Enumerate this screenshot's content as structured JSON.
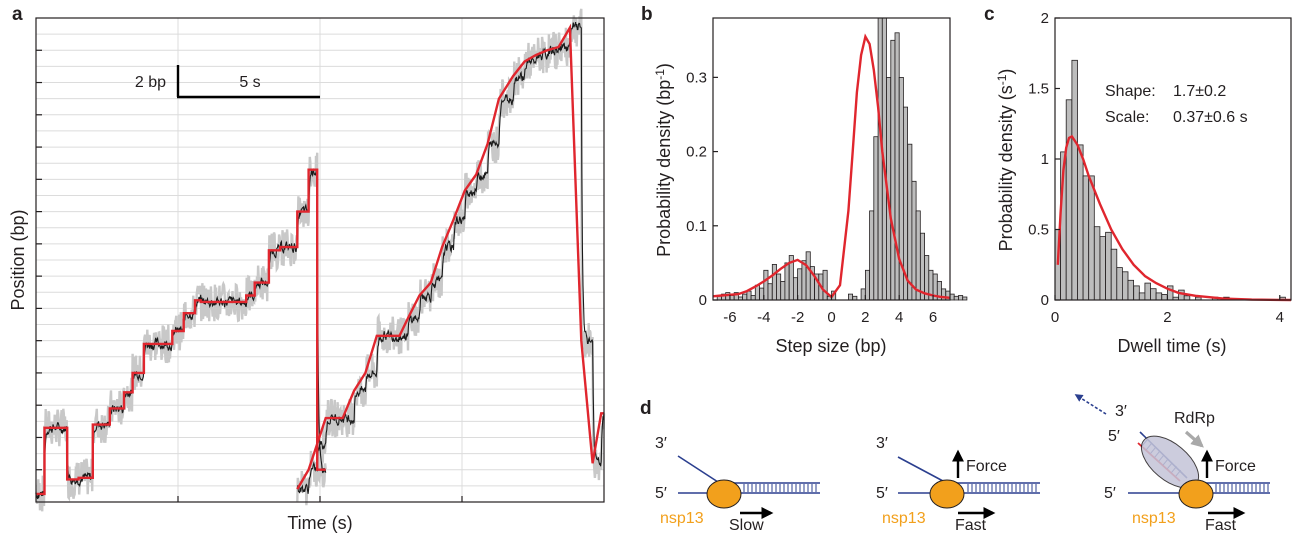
{
  "panels": {
    "a": "a",
    "b": "b",
    "c": "c",
    "d": "d"
  },
  "colors": {
    "raw": "#c8c8c8",
    "filtered": "#1a1a1a",
    "fit": "#e0262e",
    "bar": "#bdbdbd",
    "dna": "#2b3f8f",
    "helicase": "#f2a01c",
    "rdrp": "#c4c4d8"
  },
  "chart_data": [
    {
      "type": "line",
      "panel": "a",
      "xlabel": "Time (s)",
      "ylabel": "Position (bp)",
      "xlim": [
        0,
        20
      ],
      "ylim": [
        0,
        30
      ],
      "grid": true,
      "scalebar": {
        "y_label": "2 bp",
        "x_label": "5 s",
        "y_value_bp": 2,
        "x_value_s": 5
      },
      "series": [
        {
          "x": [
            0,
            0.3,
            0.3,
            1.1,
            1.1,
            1.5,
            1.5,
            2.0,
            2.0,
            2.6,
            2.6,
            3.1,
            3.1,
            3.4,
            3.4,
            3.8,
            3.8,
            4.8,
            4.8,
            5.2,
            5.2,
            5.6,
            5.6,
            5.8,
            5.8,
            7.4,
            7.4,
            7.7,
            7.7,
            8.2,
            8.2,
            8.6,
            8.6,
            9.2,
            9.2,
            9.6,
            9.6,
            9.9,
            9.9,
            10.2
          ],
          "y": [
            0.5,
            0.5,
            4.6,
            4.6,
            1.4,
            1.4,
            1.5,
            1.5,
            4.8,
            4.8,
            5.8,
            5.8,
            6.8,
            6.8,
            8.0,
            8.0,
            9.8,
            9.8,
            10.6,
            10.6,
            11.7,
            11.7,
            12.5,
            12.5,
            12.4,
            12.4,
            12.8,
            12.8,
            13.6,
            13.6,
            15.6,
            15.6,
            15.8,
            15.8,
            18.0,
            18.0,
            20.6,
            20.6,
            2.0,
            2.0
          ]
        },
        {
          "x": [
            9.2,
            9.2,
            9.6,
            9.6,
            9.9,
            9.9,
            10.2,
            10.2,
            10.8,
            10.8,
            11.2,
            11.2,
            11.6,
            11.6,
            12.0,
            12.0,
            12.8,
            12.8,
            13.1,
            13.1,
            13.5,
            13.5,
            13.9,
            13.9,
            14.3,
            14.3,
            14.7,
            14.7,
            15.1,
            15.1,
            15.5,
            15.5,
            15.9,
            15.9,
            16.3,
            16.3,
            16.8,
            16.8,
            17.2,
            17.2,
            17.6,
            17.6,
            18.0,
            18.0,
            18.4,
            18.4,
            18.8,
            18.8,
            19.2,
            19.2,
            19.6,
            19.6,
            19.9,
            19.9,
            20.0
          ],
          "y": [
            0.8,
            0.8,
            2.0,
            2.0,
            3.6,
            3.6,
            5.2,
            5.2,
            5.2,
            5.2,
            6.9,
            6.9,
            8.0,
            8.0,
            10.3,
            10.3,
            10.3,
            10.3,
            11.4,
            11.4,
            12.8,
            12.8,
            13.6,
            13.6,
            15.8,
            15.8,
            17.5,
            17.5,
            19.3,
            19.3,
            20.3,
            20.3,
            22.2,
            22.2,
            25.0,
            25.0,
            26.4,
            26.4,
            27.3,
            27.3,
            27.7,
            27.7,
            28.0,
            28.0,
            28.2,
            28.2,
            29.4,
            29.4,
            10.0,
            10.0,
            2.4,
            2.4,
            5.5,
            5.5,
            5.5
          ]
        }
      ]
    },
    {
      "type": "bar",
      "panel": "b",
      "xlabel": "Step size (bp)",
      "ylabel": "Probability density (bp",
      "ylabel_sup": "-1",
      "ylabel_close": ")",
      "xlim": [
        -7,
        7
      ],
      "ylim": [
        0,
        0.38
      ],
      "xticks": [
        -6,
        -4,
        -2,
        0,
        2,
        4,
        6
      ],
      "yticks": [
        0,
        0.1,
        0.2,
        0.3
      ],
      "xtick_labels": [
        "-6",
        "-4",
        "-2",
        "0",
        "2",
        "4",
        "6"
      ],
      "ytick_labels": [
        "0",
        "0.1",
        "0.2",
        "0.3"
      ],
      "bin_width": 0.25,
      "bin_start": -6.75,
      "values": [
        0.006,
        0.008,
        0.01,
        0.006,
        0.01,
        0.004,
        0.008,
        0.012,
        0.006,
        0.02,
        0.016,
        0.04,
        0.022,
        0.048,
        0.035,
        0.025,
        0.05,
        0.06,
        0.03,
        0.042,
        0.053,
        0.065,
        0.045,
        0.035,
        0.035,
        0.04,
        0.005,
        0.012,
        0.0,
        0.0,
        0.0,
        0.008,
        0.005,
        0.0,
        0.015,
        0.04,
        0.12,
        0.22,
        0.4,
        0.39,
        0.3,
        0.35,
        0.36,
        0.3,
        0.26,
        0.21,
        0.16,
        0.12,
        0.09,
        0.06,
        0.04,
        0.035,
        0.025,
        0.015,
        0.012,
        0.008,
        0.005,
        0.006,
        0.004
      ],
      "fit": {
        "x": [
          -7,
          -6.5,
          -6,
          -5.5,
          -5,
          -4.5,
          -4,
          -3.5,
          -3,
          -2.5,
          -2,
          -1.5,
          -1,
          -0.5,
          0,
          0.5,
          1,
          1.25,
          1.5,
          1.75,
          2,
          2.25,
          2.5,
          2.75,
          3,
          3.5,
          4,
          4.5,
          5,
          5.5,
          6,
          6.5,
          7
        ],
        "y": [
          0.005,
          0.006,
          0.007,
          0.008,
          0.012,
          0.018,
          0.025,
          0.033,
          0.042,
          0.05,
          0.054,
          0.047,
          0.032,
          0.014,
          0.004,
          0.02,
          0.12,
          0.2,
          0.28,
          0.33,
          0.355,
          0.345,
          0.31,
          0.26,
          0.2,
          0.11,
          0.055,
          0.026,
          0.014,
          0.009,
          0.006,
          0.004,
          0.003
        ]
      }
    },
    {
      "type": "bar",
      "panel": "c",
      "xlabel": "Dwell time (s)",
      "ylabel": "Probability density (s",
      "ylabel_sup": "-1",
      "ylabel_close": ")",
      "xlim": [
        0,
        4.2
      ],
      "ylim": [
        0,
        2
      ],
      "xticks": [
        0,
        2,
        4
      ],
      "yticks": [
        0,
        0.5,
        1,
        1.5,
        2
      ],
      "xtick_labels": [
        "0",
        "2",
        "4"
      ],
      "ytick_labels": [
        "0",
        "0.5",
        "1",
        "1.5",
        "2"
      ],
      "bin_width": 0.1,
      "bin_start": 0,
      "values": [
        0.5,
        1.05,
        1.42,
        1.7,
        1.1,
        0.88,
        0.88,
        0.52,
        0.45,
        0.48,
        0.36,
        0.23,
        0.2,
        0.14,
        0.1,
        0.05,
        0.12,
        0.08,
        0.05,
        0.04,
        0.1,
        0.02,
        0.07,
        0.03,
        0.0,
        0.02,
        0.0,
        0.0,
        0.02,
        0.0,
        0.02,
        0.0,
        0.0,
        0.0,
        0.0,
        0.0,
        0.0,
        0.0,
        0.0,
        0.0,
        0.02
      ],
      "fit": {
        "x": [
          0.05,
          0.1,
          0.15,
          0.2,
          0.25,
          0.3,
          0.4,
          0.5,
          0.6,
          0.8,
          1.0,
          1.2,
          1.4,
          1.6,
          1.8,
          2.0,
          2.2,
          2.5,
          3.0,
          3.5,
          4.0,
          4.2
        ],
        "y": [
          0.25,
          0.62,
          0.92,
          1.08,
          1.15,
          1.16,
          1.1,
          1.0,
          0.88,
          0.68,
          0.5,
          0.36,
          0.25,
          0.17,
          0.12,
          0.08,
          0.05,
          0.03,
          0.01,
          0.003,
          0.001,
          0.0
        ]
      },
      "annotations": {
        "shape_label": "Shape:",
        "shape_value": "1.7±0.2",
        "scale_label": "Scale:",
        "scale_value": "0.37±0.6 s"
      }
    }
  ],
  "diagram_d": {
    "prime3": "3′",
    "prime5": "5′",
    "enzyme": "nsp13",
    "slow": "Slow",
    "fast": "Fast",
    "force": "Force",
    "rdrp": "RdRp"
  }
}
